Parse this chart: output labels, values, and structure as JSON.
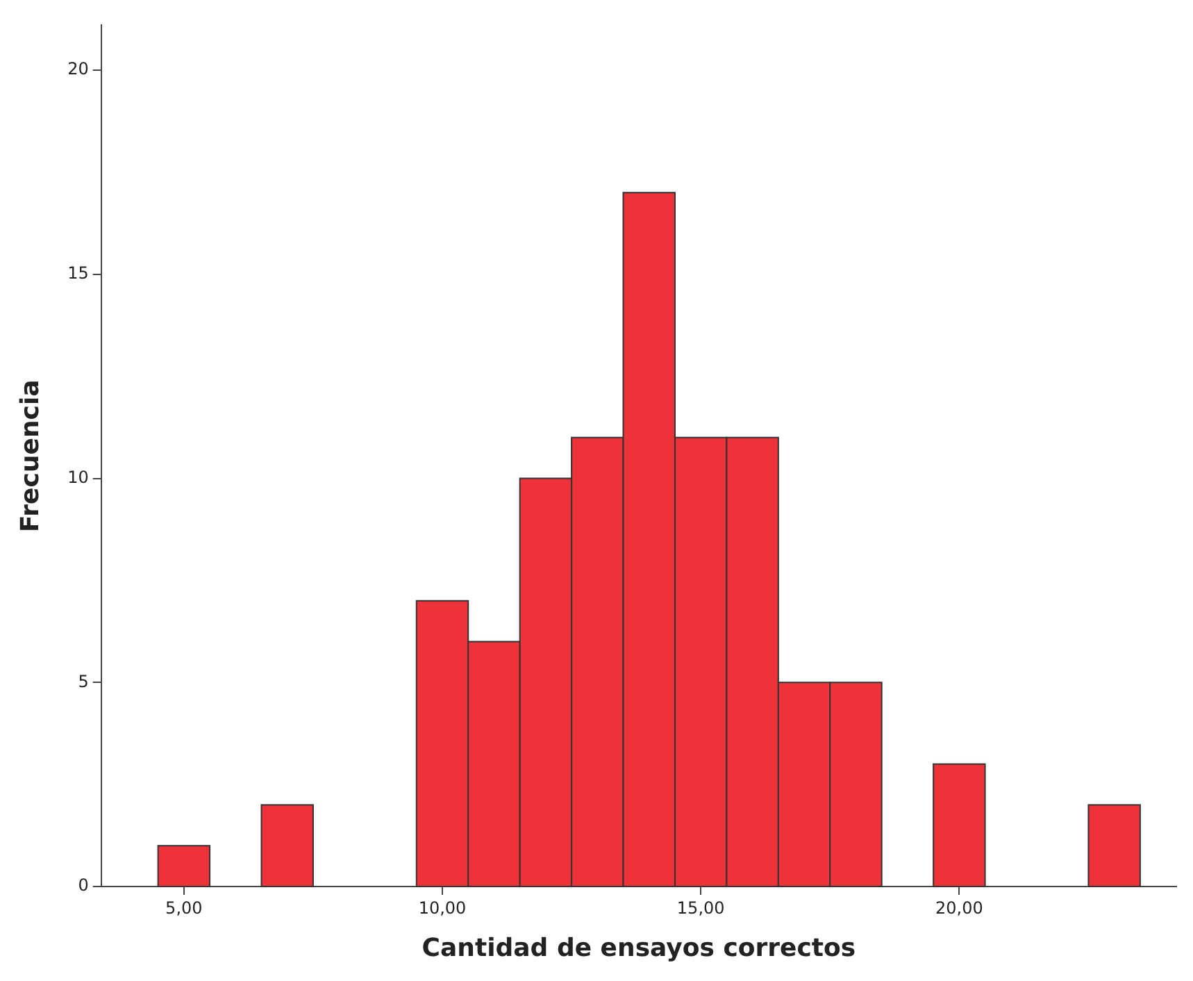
{
  "chart_data": {
    "type": "histogram",
    "xlabel": "Cantidad de ensayos correctos",
    "ylabel": "Frecuencia",
    "bins": [
      4.5,
      5.5,
      6.5,
      7.5,
      8.5,
      9.5,
      10.5,
      11.5,
      12.5,
      13.5,
      14.5,
      15.5,
      16.5,
      17.5,
      18.5,
      19.5,
      20.5,
      21.5,
      22.5,
      23.5
    ],
    "values": [
      1,
      0,
      2,
      0,
      0,
      7,
      6,
      10,
      11,
      17,
      11,
      11,
      5,
      5,
      0,
      3,
      0,
      0,
      2
    ],
    "color": "#ee3239",
    "xlim": [
      3.4,
      24.2
    ],
    "ylim": [
      0,
      21.1
    ],
    "xticks": [
      {
        "value": 5,
        "label": "5,00"
      },
      {
        "value": 10,
        "label": "10,00"
      },
      {
        "value": 15,
        "label": "15,00"
      },
      {
        "value": 20,
        "label": "20,00"
      }
    ],
    "yticks": [
      0,
      5,
      10,
      15,
      20
    ],
    "grid": false,
    "legend": false
  }
}
